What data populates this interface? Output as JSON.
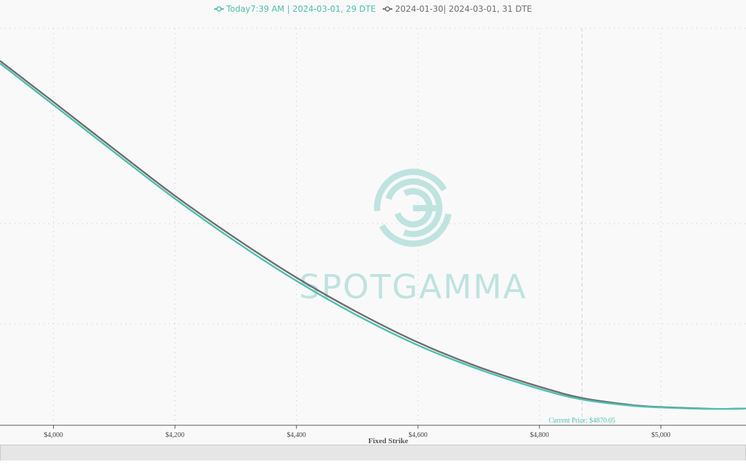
{
  "colors": {
    "today": "#4fbfae",
    "previous": "#6e6e6e",
    "watermark": "#bfe3df",
    "grid": "#bdbdbd",
    "current_price": "#4fbfae"
  },
  "watermark": {
    "text": "SPOTGAMMA"
  },
  "chart_data": {
    "type": "line",
    "xlabel": "Fixed Strike",
    "ylabel": "",
    "x_ticks": [
      4000,
      4200,
      4400,
      4600,
      4800,
      5000
    ],
    "x_tick_labels": [
      "$4,000",
      "$4,200",
      "$4,400",
      "$4,600",
      "$4,800",
      "$5,000"
    ],
    "xlim": [
      3912,
      5140
    ],
    "grid": true,
    "legend": "top-center",
    "current_price": {
      "value": 4870.05,
      "label": "Current Price: $4870.05"
    },
    "series": [
      {
        "name": "Today7:39 AM | 2024-03-01, 29 DTE",
        "x": [
          3912,
          4000,
          4100,
          4200,
          4300,
          4400,
          4500,
          4600,
          4700,
          4800,
          4870,
          4950,
          5000,
          5050,
          5100,
          5140
        ],
        "y": [
          0.1775,
          0.1661,
          0.1531,
          0.1403,
          0.1285,
          0.1177,
          0.1082,
          0.1,
          0.0934,
          0.088,
          0.0851,
          0.0834,
          0.0829,
          0.0826,
          0.0825,
          0.0826
        ]
      },
      {
        "name": "2024-01-30| 2024-03-01, 31 DTE",
        "x": [
          3912,
          4000,
          4100,
          4200,
          4300,
          4400,
          4500,
          4600,
          4700,
          4800,
          4870,
          4950,
          5000,
          5050,
          5100,
          5140
        ],
        "y": [
          0.1782,
          0.1669,
          0.1539,
          0.1411,
          0.1294,
          0.1186,
          0.1091,
          0.1008,
          0.094,
          0.0886,
          0.0855,
          0.0836,
          0.083,
          0.0827,
          0.0825,
          0.0826
        ]
      }
    ]
  }
}
